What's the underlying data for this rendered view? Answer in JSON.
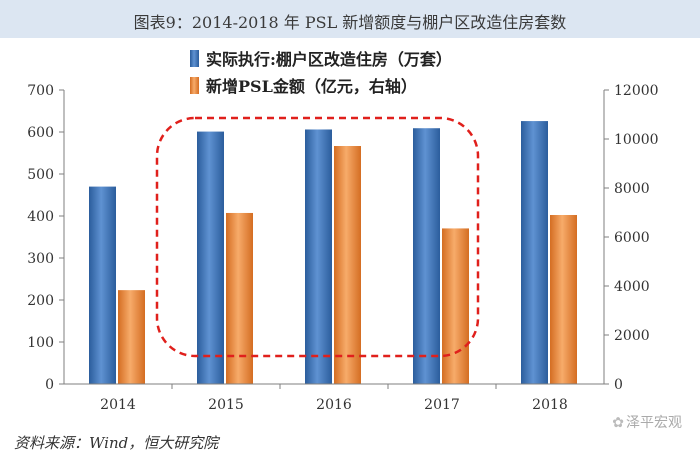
{
  "title": "图表9：2014-2018 年 PSL 新增额度与棚户区改造住房套数",
  "source": "资料来源：Wind，恒大研究院",
  "watermark": "泽平宏观",
  "colors": {
    "series1": "#3d72b6",
    "series2": "#ee8a3c",
    "highlight": "#e0201c",
    "title_bg": "#dce6f2"
  },
  "chart_data": {
    "type": "bar",
    "categories": [
      "2014",
      "2015",
      "2016",
      "2017",
      "2018"
    ],
    "series": [
      {
        "name": "实际执行:棚户区改造住房（万套）",
        "axis": "left",
        "values": [
          470,
          601,
          606,
          609,
          626
        ]
      },
      {
        "name": "新增PSL金额（亿元，右轴）",
        "axis": "right",
        "values": [
          3831,
          6981,
          9714,
          6350,
          6898
        ]
      }
    ],
    "left_axis": {
      "min": 0,
      "max": 700,
      "ticks": [
        "0",
        "100",
        "200",
        "300",
        "400",
        "500",
        "600",
        "700"
      ]
    },
    "right_axis": {
      "min": 0,
      "max": 12000,
      "ticks": [
        "0",
        "2000",
        "4000",
        "6000",
        "8000",
        "10000",
        "12000"
      ]
    },
    "annotation": "dashed rounded rectangle highlighting 2015-2017"
  }
}
